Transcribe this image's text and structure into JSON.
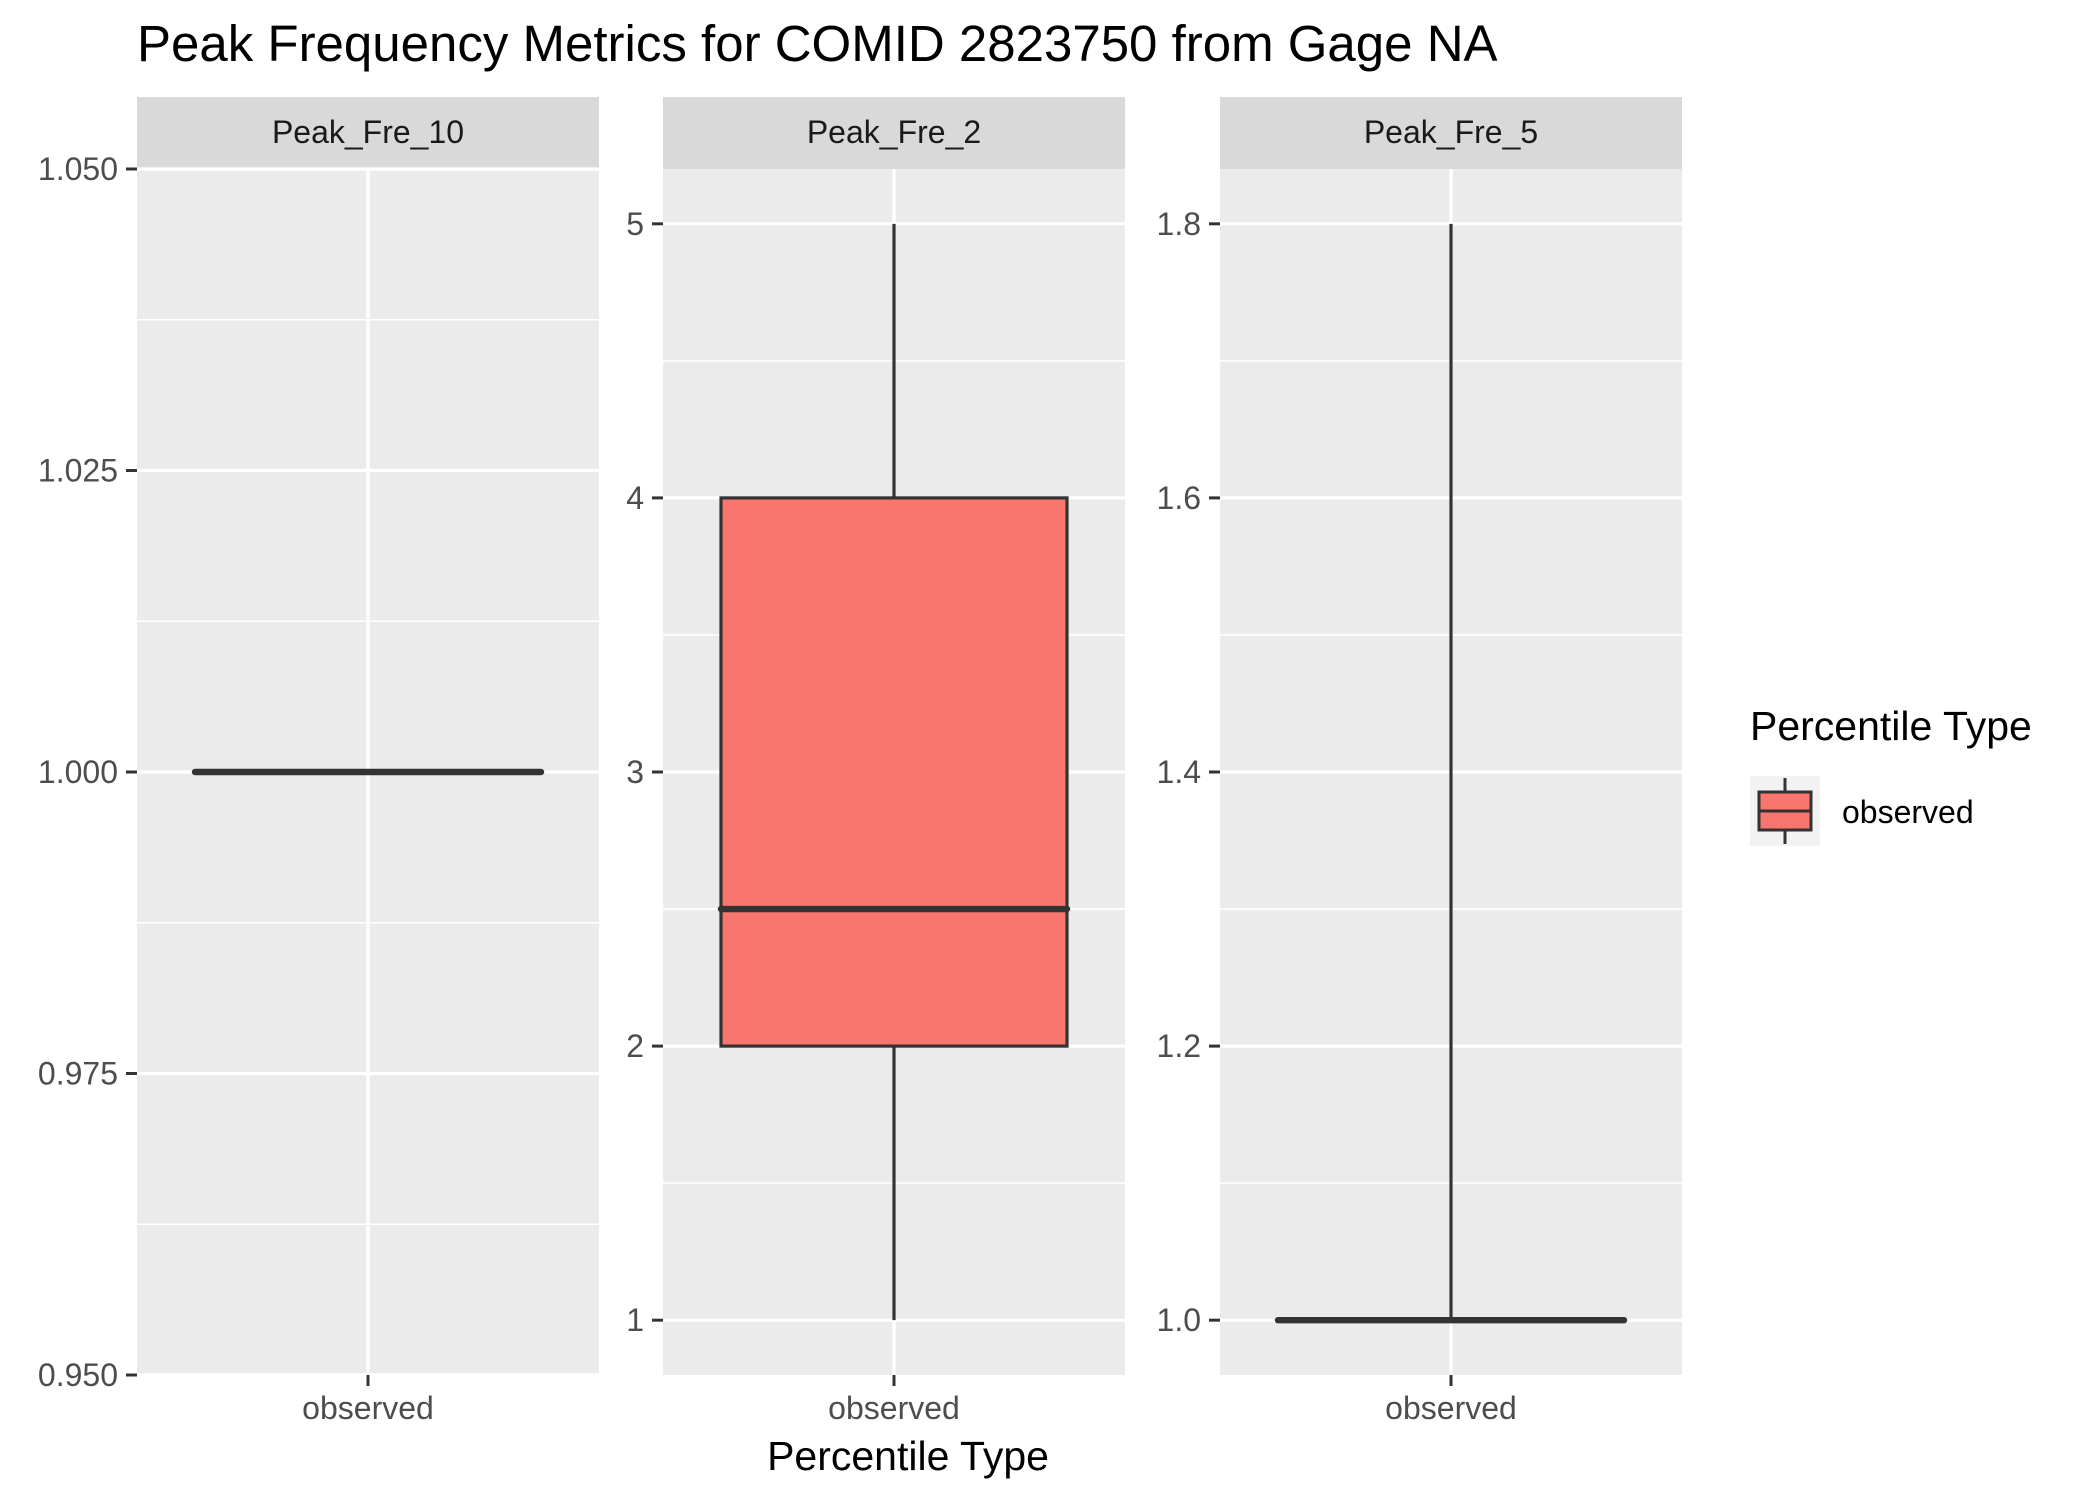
{
  "chart_data": {
    "type": "boxplot",
    "title": "Peak Frequency Metrics for COMID 2823750 from Gage NA",
    "xlabel": "Percentile Type",
    "ylabel": "",
    "fill_color": "#F8766D",
    "panels": [
      {
        "name": "Peak_Fre_10",
        "category": "observed",
        "ylim": [
          0.95,
          1.05
        ],
        "yticks": [
          0.95,
          0.975,
          1.0,
          1.025,
          1.05
        ],
        "ytick_labels": [
          "0.950",
          "0.975",
          "1.000",
          "1.025",
          "1.050"
        ],
        "box": {
          "min": 1.0,
          "q1": 1.0,
          "median": 1.0,
          "q3": 1.0,
          "max": 1.0
        }
      },
      {
        "name": "Peak_Fre_2",
        "category": "observed",
        "ylim": [
          0.8,
          5.2
        ],
        "yticks": [
          1,
          2,
          3,
          4,
          5
        ],
        "ytick_labels": [
          "1",
          "2",
          "3",
          "4",
          "5"
        ],
        "box": {
          "min": 1.0,
          "q1": 2.0,
          "median": 2.5,
          "q3": 4.0,
          "max": 5.0
        }
      },
      {
        "name": "Peak_Fre_5",
        "category": "observed",
        "ylim": [
          0.96,
          1.84
        ],
        "yticks": [
          1.0,
          1.2,
          1.4,
          1.6,
          1.8
        ],
        "ytick_labels": [
          "1.0",
          "1.2",
          "1.4",
          "1.6",
          "1.8"
        ],
        "box": {
          "min": 1.0,
          "q1": 1.0,
          "median": 1.0,
          "q3": 1.0,
          "max": 1.8
        }
      }
    ],
    "legend": {
      "title": "Percentile Type",
      "entries": [
        "observed"
      ],
      "position": "right"
    },
    "grid": true
  }
}
